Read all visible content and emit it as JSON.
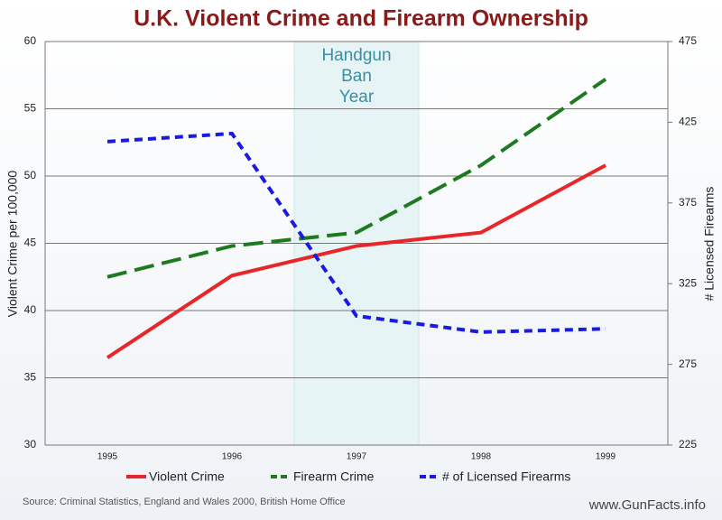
{
  "chart_data": {
    "type": "line",
    "title": "U.K. Violent Crime and Firearm Ownership",
    "annotation": [
      "Handgun",
      "Ban",
      "Year"
    ],
    "categories": [
      "1995",
      "1996",
      "1997",
      "1998",
      "1999"
    ],
    "ylabel": "Violent Crime per 100,000",
    "y2label": "# Licensed Firearms",
    "ylim": [
      30,
      60
    ],
    "yticks": [
      30,
      35,
      40,
      45,
      50,
      55,
      60
    ],
    "y2lim": [
      225,
      475
    ],
    "y2ticks": [
      225,
      275,
      325,
      375,
      425,
      475
    ],
    "grid": true,
    "series": [
      {
        "name": "Violent Crime",
        "color": "#e8262a",
        "dash": "solid",
        "values": [
          36.5,
          42.6,
          44.8,
          45.8,
          50.8
        ]
      },
      {
        "name": "Firearm Crime",
        "color": "#1f7a1f",
        "dash": "long",
        "values": [
          42.5,
          44.8,
          45.8,
          50.8,
          57.2
        ]
      },
      {
        "name": "# of Licensed Firearms",
        "color": "#1a1ae0",
        "dash": "short",
        "axis": "y2",
        "values": [
          413,
          418,
          305,
          295,
          297
        ]
      }
    ],
    "source": "Source: Criminal  Statistics, England  and  Wales 2000, British Home Office",
    "website": "www.GunFacts.info"
  }
}
